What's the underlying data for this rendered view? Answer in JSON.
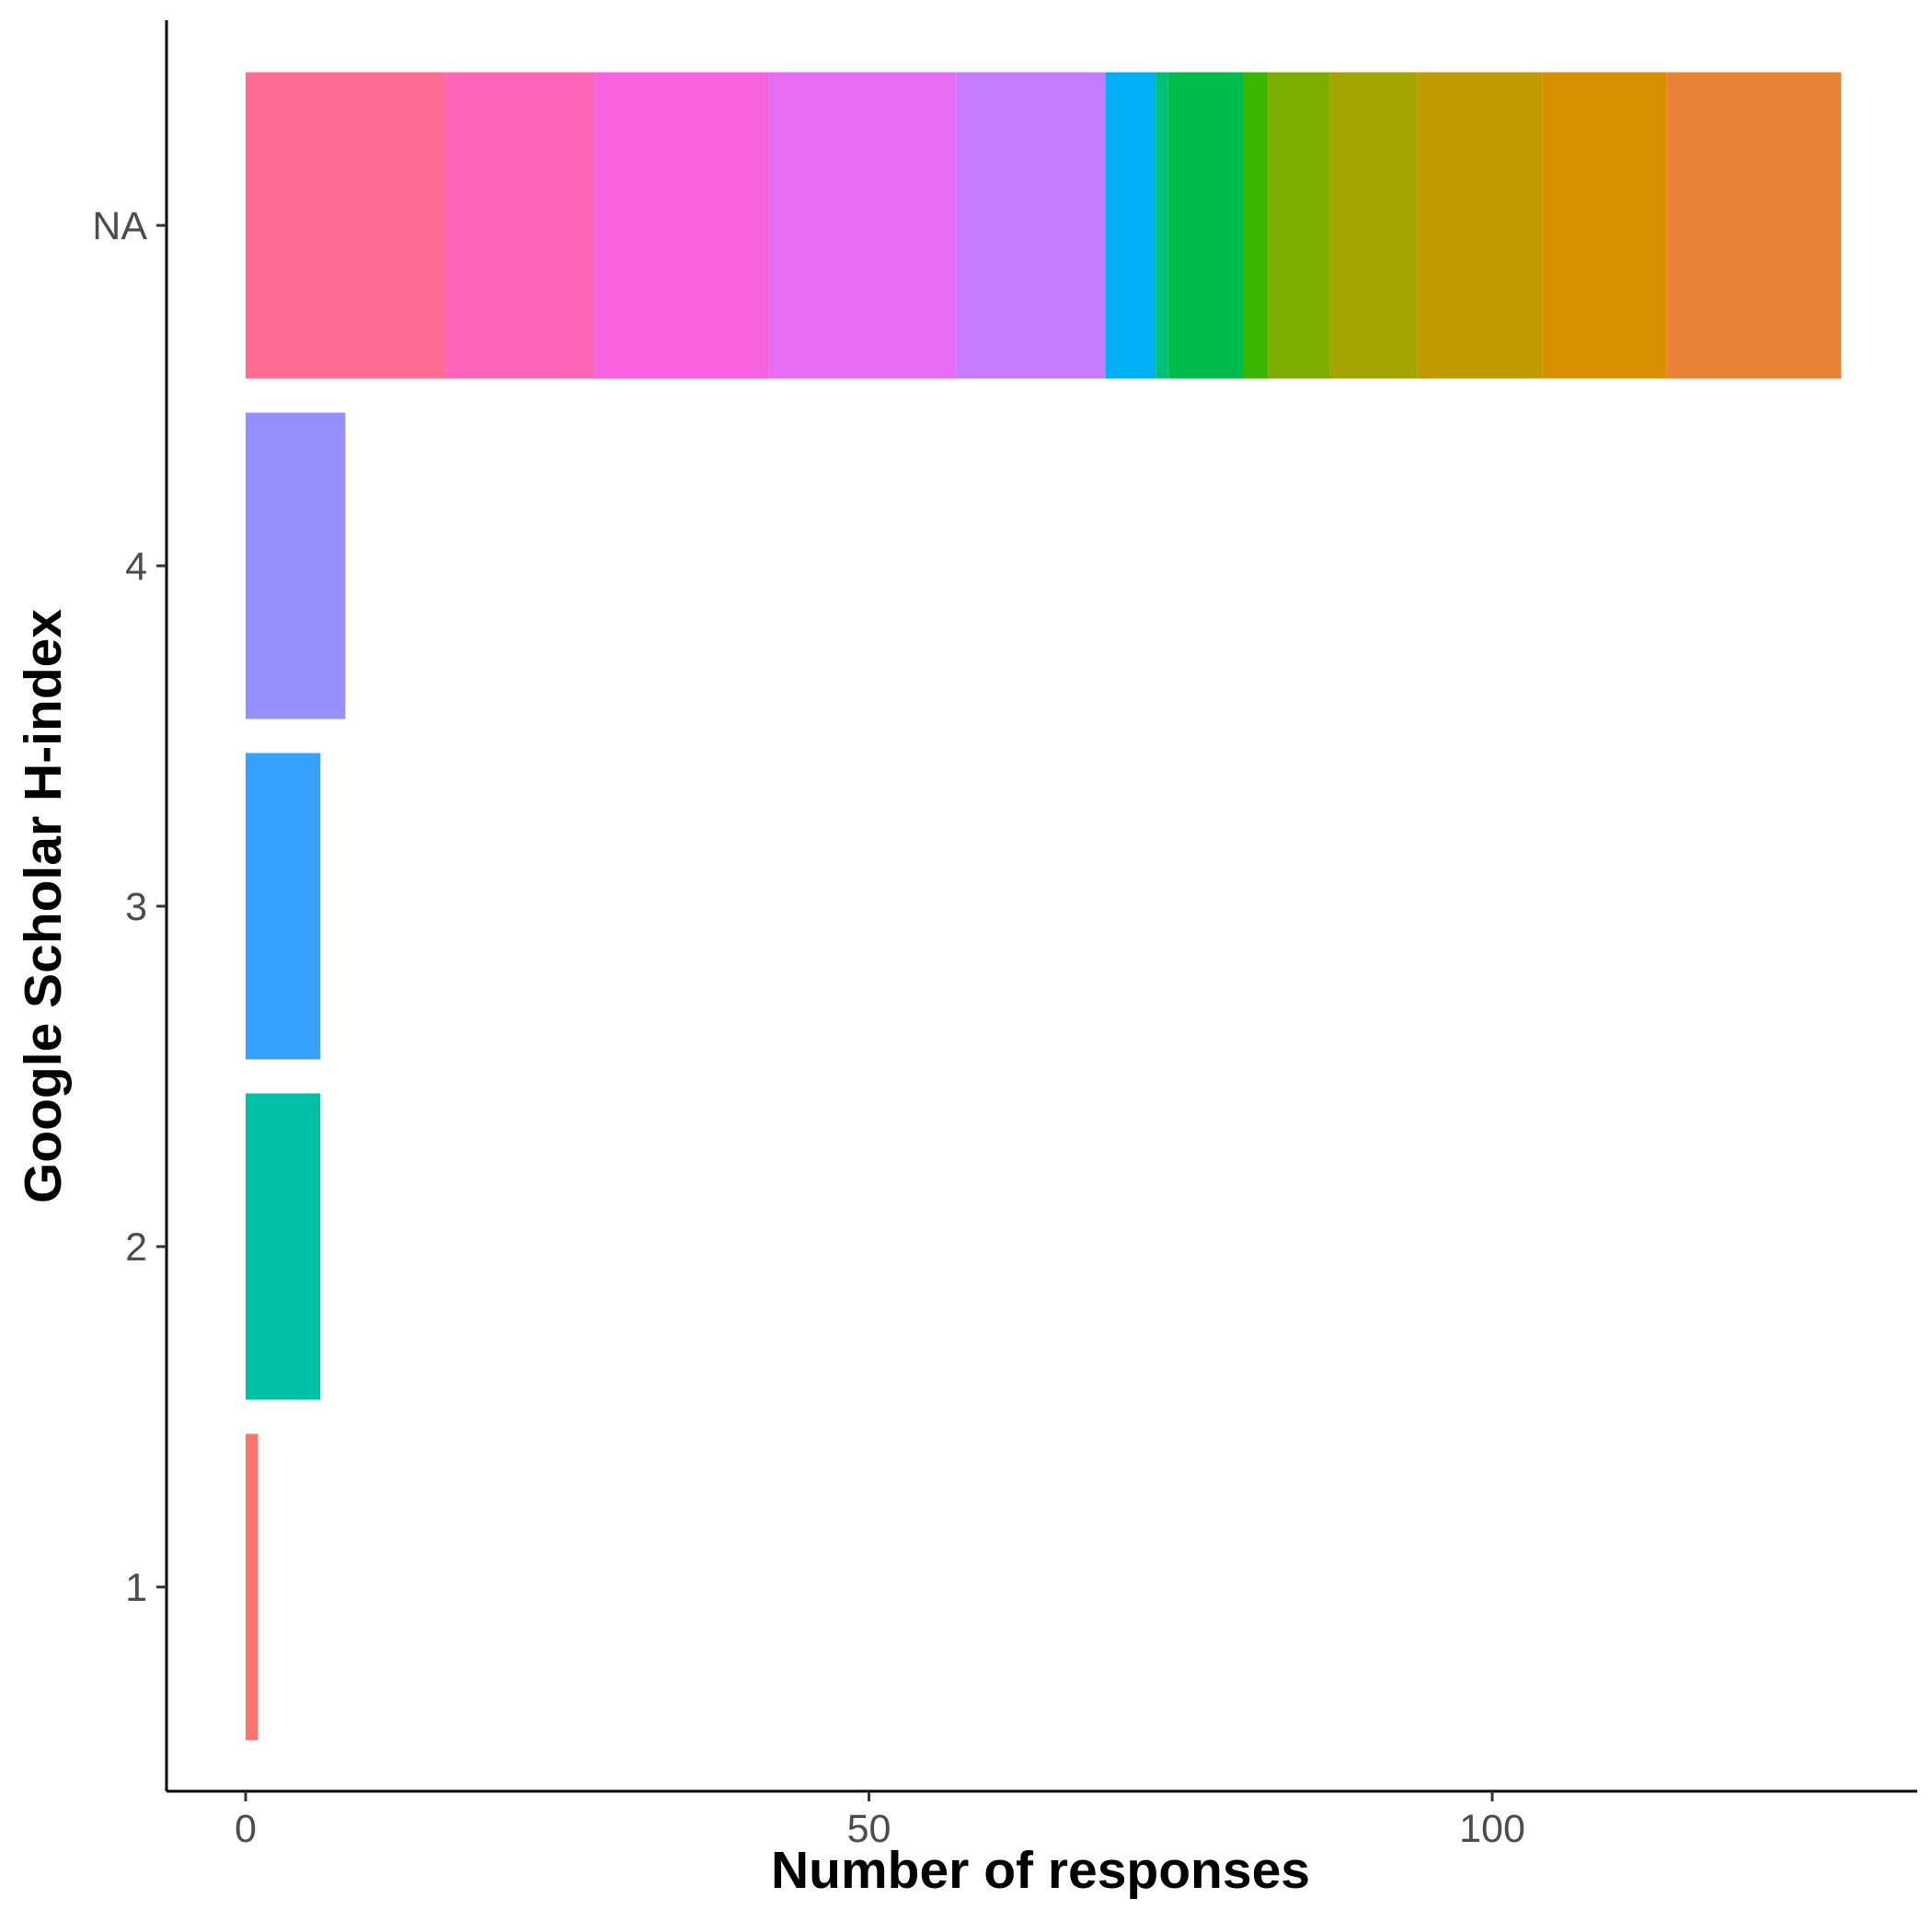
{
  "chart_data": {
    "type": "bar",
    "orientation": "horizontal",
    "stacked": true,
    "xlabel": "Number of responses",
    "ylabel": "Google Scholar H-index",
    "xlim": [
      0,
      128
    ],
    "x_ticks": [
      "0",
      "50",
      "100"
    ],
    "x_tick_values": [
      0,
      50,
      100
    ],
    "categories": [
      "1",
      "2",
      "3",
      "4",
      "NA"
    ],
    "grid": false,
    "legend": "none",
    "bars": [
      {
        "category": "1",
        "segments": [
          {
            "value": 1,
            "color": "#F8766D"
          }
        ]
      },
      {
        "category": "2",
        "segments": [
          {
            "value": 6,
            "color": "#00C0A8"
          }
        ]
      },
      {
        "category": "3",
        "segments": [
          {
            "value": 6,
            "color": "#35A2FF"
          }
        ]
      },
      {
        "category": "4",
        "segments": [
          {
            "value": 8,
            "color": "#9590FF"
          }
        ]
      },
      {
        "category": "NA",
        "segments": [
          {
            "value": 16,
            "color": "#FF6C91"
          },
          {
            "value": 12,
            "color": "#FF65B6"
          },
          {
            "value": 14,
            "color": "#F863DF"
          },
          {
            "value": 15,
            "color": "#E76BF3"
          },
          {
            "value": 12,
            "color": "#C77CFF"
          },
          {
            "value": 4,
            "color": "#00B0F6"
          },
          {
            "value": 1,
            "color": "#00BF7D"
          },
          {
            "value": 6,
            "color": "#00BC4C"
          },
          {
            "value": 2,
            "color": "#39B600"
          },
          {
            "value": 5,
            "color": "#7CAE00"
          },
          {
            "value": 7,
            "color": "#A3A500"
          },
          {
            "value": 10,
            "color": "#C09B00"
          },
          {
            "value": 10,
            "color": "#D89000"
          },
          {
            "value": 14,
            "color": "#E98335"
          }
        ]
      }
    ]
  }
}
